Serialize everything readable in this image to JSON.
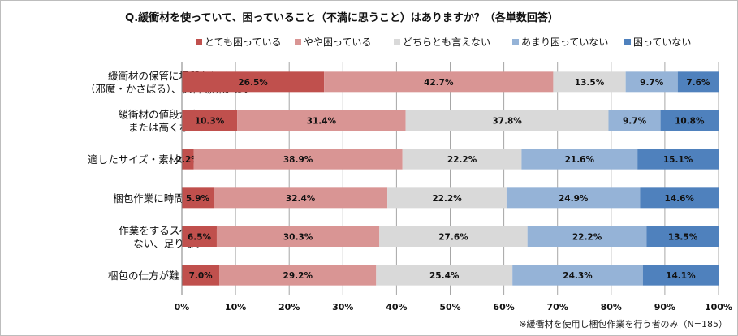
{
  "chart_data": {
    "type": "bar",
    "orientation": "horizontal",
    "stacked": true,
    "title": "Q.緩衝材を使っていて、困っていること（不満に思うこと）はありますか？（各単数回答）",
    "categories": [
      [
        "緩衝材の保管に場所をとる",
        "（邪魔・かさばる）、保管場所がない"
      ],
      [
        "緩衝材の値段が高い、",
        "または高くなった"
      ],
      [
        "適したサイズ・素材の緩衝材がない"
      ],
      [
        "梱包作業に時間がかかる"
      ],
      [
        "作業をするスペースが",
        "ない、足りない"
      ],
      [
        "梱包の仕方が難しい・煩雑"
      ]
    ],
    "series": [
      {
        "name": "とても困っている",
        "color": "#c0504d",
        "values": [
          26.5,
          10.3,
          2.2,
          5.9,
          6.5,
          7.0
        ]
      },
      {
        "name": "やや困っている",
        "color": "#d99594",
        "values": [
          42.7,
          31.4,
          38.9,
          32.4,
          30.3,
          29.2
        ]
      },
      {
        "name": "どちらとも言えない",
        "color": "#d9d9d9",
        "values": [
          13.5,
          37.8,
          22.2,
          22.2,
          27.6,
          25.4
        ]
      },
      {
        "name": "あまり困っていない",
        "color": "#95b3d7",
        "values": [
          9.7,
          9.7,
          21.6,
          24.9,
          22.2,
          24.3
        ]
      },
      {
        "name": "困っていない",
        "color": "#4f81bd",
        "values": [
          7.6,
          10.8,
          15.1,
          14.6,
          13.5,
          14.1
        ]
      }
    ],
    "xlim": [
      0,
      100
    ],
    "xticks": [
      "0%",
      "10%",
      "20%",
      "30%",
      "40%",
      "50%",
      "60%",
      "70%",
      "80%",
      "90%",
      "100%"
    ],
    "grid": true,
    "legend_position": "top",
    "footnote": "※緩衝材を使用し梱包作業を行う者のみ（N=185）"
  }
}
